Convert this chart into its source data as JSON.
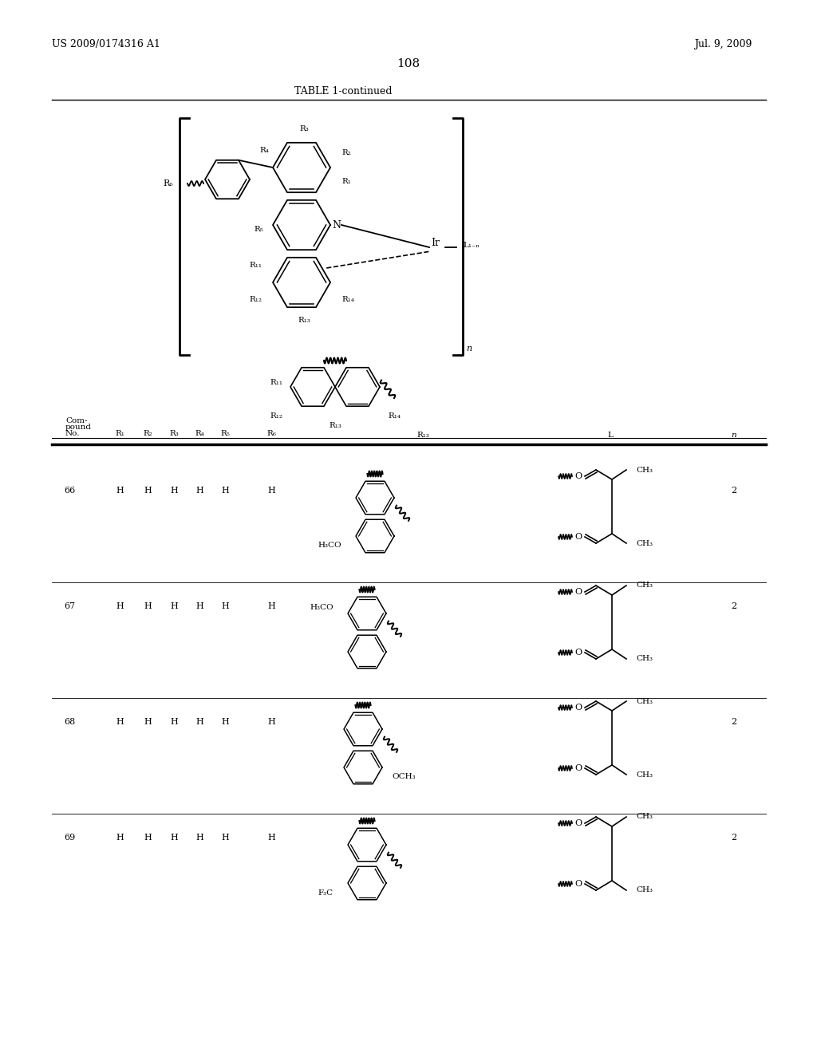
{
  "page_number": "108",
  "patent_number": "US 2009/0174316 A1",
  "patent_date": "Jul. 9, 2009",
  "table_title": "TABLE 1-continued",
  "background_color": "#ffffff",
  "text_color": "#000000",
  "figsize": [
    10.24,
    13.2
  ],
  "dpi": 100,
  "compounds": [
    {
      "no": "66",
      "r1": "H",
      "r2": "H",
      "r3": "H",
      "r4": "H",
      "r5": "H",
      "r6": "H",
      "n": "2",
      "sub_label": "H₃CO",
      "sub_pos": "bottom-left"
    },
    {
      "no": "67",
      "r1": "H",
      "r2": "H",
      "r3": "H",
      "r4": "H",
      "r5": "H",
      "r6": "H",
      "n": "2",
      "sub_label": "H₃CO",
      "sub_pos": "top-left"
    },
    {
      "no": "68",
      "r1": "H",
      "r2": "H",
      "r3": "H",
      "r4": "H",
      "r5": "H",
      "r6": "H",
      "n": "2",
      "sub_label": "OCH₃",
      "sub_pos": "bottom-right"
    },
    {
      "no": "69",
      "r1": "H",
      "r2": "H",
      "r3": "H",
      "r4": "H",
      "r5": "H",
      "r6": "H",
      "n": "2",
      "sub_label": "F₃C",
      "sub_pos": "bottom-left"
    }
  ]
}
